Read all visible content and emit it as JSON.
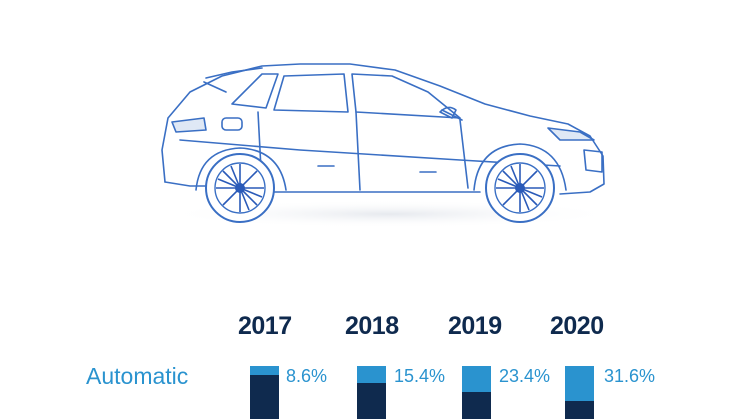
{
  "chart_data": {
    "type": "bar",
    "title": "",
    "categories": [
      "2017",
      "2018",
      "2019",
      "2020"
    ],
    "series": [
      {
        "name": "Automatic",
        "values": [
          8.6,
          15.4,
          23.4,
          31.6
        ],
        "labels": [
          "8.6%",
          "15.4%",
          "23.4%",
          "31.6%"
        ]
      }
    ],
    "unit": "%",
    "ylim": [
      0,
      100
    ],
    "grid": false,
    "colors": {
      "highlight": "#2a93cf",
      "base": "#0f2a4e",
      "outline": "#3a6fc4"
    }
  }
}
